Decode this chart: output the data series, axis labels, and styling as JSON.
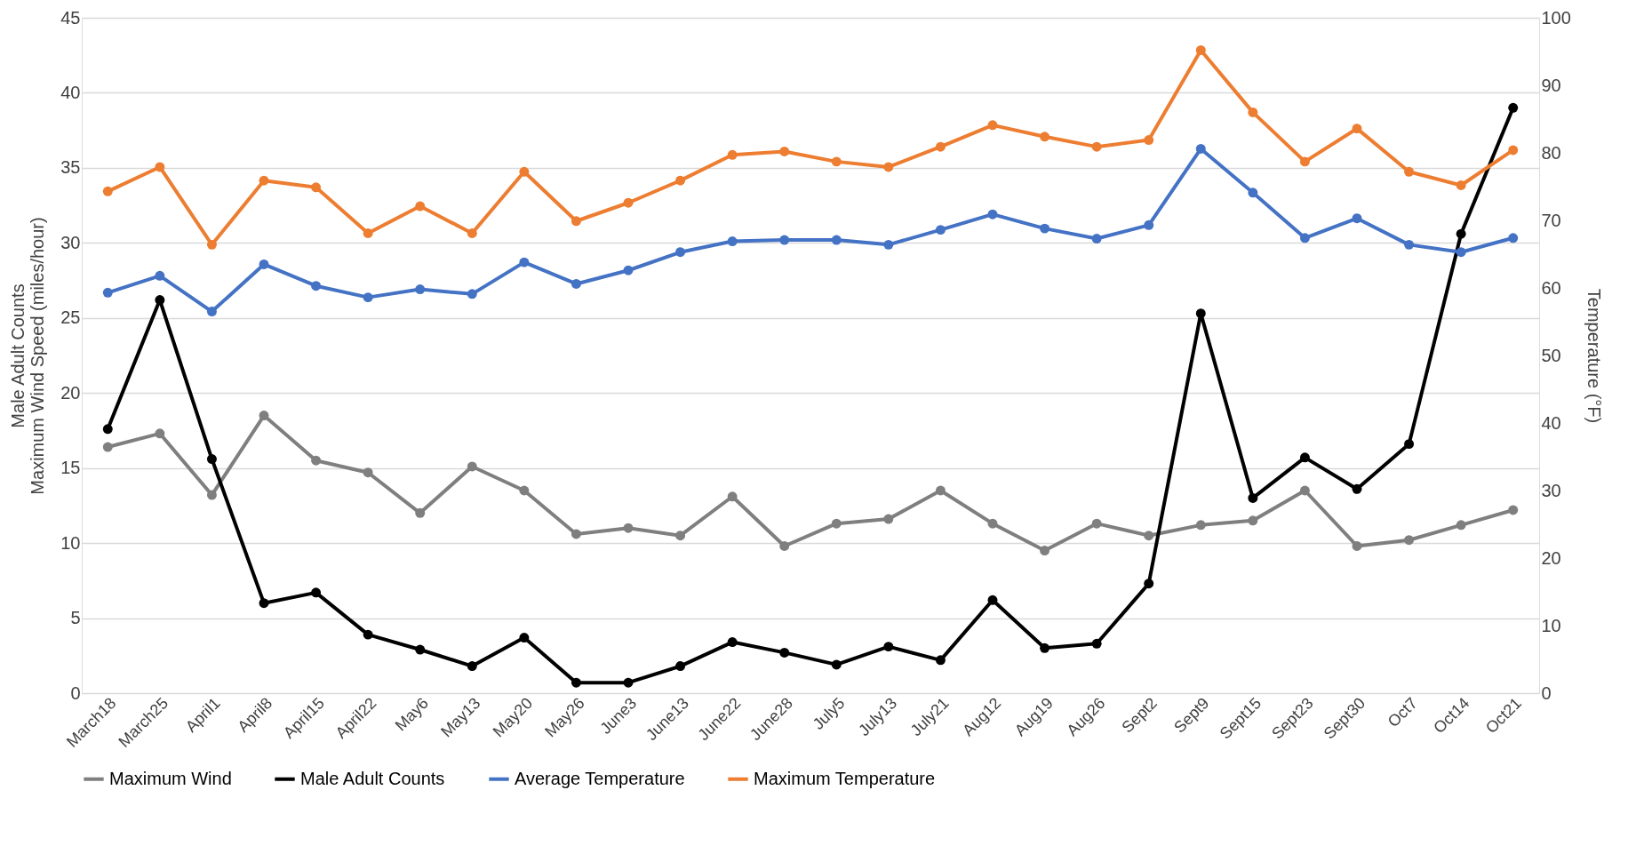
{
  "chart_data": {
    "type": "line",
    "categories": [
      "March18",
      "March25",
      "April1",
      "April8",
      "April15",
      "April22",
      "May6",
      "May13",
      "May20",
      "May26",
      "June3",
      "June13",
      "June22",
      "June28",
      "July5",
      "July13",
      "July21",
      "Aug12",
      "Aug19",
      "Aug26",
      "Sept2",
      "Sept9",
      "Sept15",
      "Sept23",
      "Sept30",
      "Oct7",
      "Oct14",
      "Oct21"
    ],
    "ylabel": "Male Adult Counts\nMaximum Wind Speed (miles/hour)",
    "y2label": "Temperature (°F)",
    "ylim": [
      0,
      45
    ],
    "yticks": [
      0,
      5,
      10,
      15,
      20,
      25,
      30,
      35,
      40,
      45
    ],
    "y2lim": [
      0,
      100
    ],
    "y2ticks": [
      0,
      10,
      20,
      30,
      40,
      50,
      60,
      70,
      80,
      90,
      100
    ],
    "grid": "y",
    "legend": "bottom",
    "marker": "circle",
    "line_style": "solid",
    "series": [
      {
        "name": "Maximum Wind",
        "color": "#7f7f7f",
        "values": [
          16.4,
          17.3,
          13.2,
          18.5,
          15.5,
          14.7,
          12.0,
          15.1,
          13.5,
          10.6,
          11.0,
          10.5,
          13.1,
          9.8,
          11.3,
          11.6,
          13.5,
          11.3,
          9.5,
          11.3,
          10.5,
          11.2,
          11.5,
          13.5,
          9.8,
          10.2,
          11.2,
          12.2
        ]
      },
      {
        "name": "Male Adult Counts",
        "color": "#000000",
        "values": [
          17.6,
          26.2,
          15.6,
          6.0,
          6.7,
          3.9,
          2.9,
          1.8,
          3.7,
          0.7,
          0.7,
          1.8,
          3.4,
          2.7,
          1.9,
          3.1,
          2.2,
          6.2,
          3.0,
          3.3,
          7.3,
          25.3,
          13.0,
          15.7,
          13.6,
          16.6,
          30.6,
          39.0
        ]
      },
      {
        "name": "Average Temperature",
        "color": "#4472c4",
        "axis": "y2",
        "values": [
          59.3,
          61.8,
          56.5,
          63.5,
          60.3,
          58.6,
          59.8,
          59.1,
          63.8,
          60.6,
          62.6,
          65.3,
          66.9,
          67.1,
          67.1,
          66.4,
          68.6,
          70.9,
          68.8,
          67.3,
          69.3,
          80.6,
          74.1,
          67.4,
          70.3,
          66.4,
          65.3,
          67.4
        ]
      },
      {
        "name": "Maximum Temperature",
        "color": "#ed7d31",
        "axis": "y2",
        "values": [
          74.3,
          77.9,
          66.4,
          75.9,
          74.9,
          68.1,
          72.1,
          68.1,
          77.2,
          69.9,
          72.6,
          75.9,
          79.7,
          80.2,
          78.7,
          77.9,
          80.9,
          84.1,
          82.4,
          80.9,
          81.9,
          95.2,
          86.0,
          78.7,
          83.6,
          77.2,
          75.2,
          80.4
        ]
      }
    ]
  }
}
